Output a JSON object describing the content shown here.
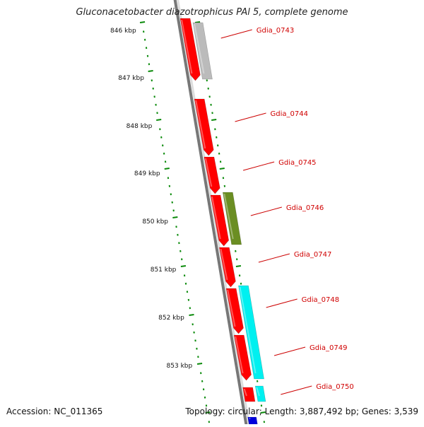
{
  "title": "Gluconacetobacter diazotrophicus PAl 5, complete genome",
  "footer": {
    "accession": "Accession: NC_011365",
    "topology": "Topology: circular; Length: 3,887,492 bp; Genes: 3,539"
  },
  "colors": {
    "backbone": "#777777",
    "tick": "#0a8a0a",
    "gene_label": "#d00000",
    "leader": "#cc0000",
    "gene_red": "#ff0000",
    "gene_gray": "#bbbbbb",
    "gene_olive": "#6b8e23",
    "gene_cyan": "#00f0f0",
    "gene_blue": "#0000dd"
  },
  "scale_labels": [
    "846 kbp",
    "847 kbp",
    "848 kbp",
    "849 kbp",
    "850 kbp",
    "851 kbp",
    "852 kbp",
    "853 kbp"
  ],
  "gene_labels": [
    "Gdia_0743",
    "Gdia_0744",
    "Gdia_0745",
    "Gdia_0746",
    "Gdia_0747",
    "Gdia_0748",
    "Gdia_0749",
    "Gdia_0750"
  ]
}
